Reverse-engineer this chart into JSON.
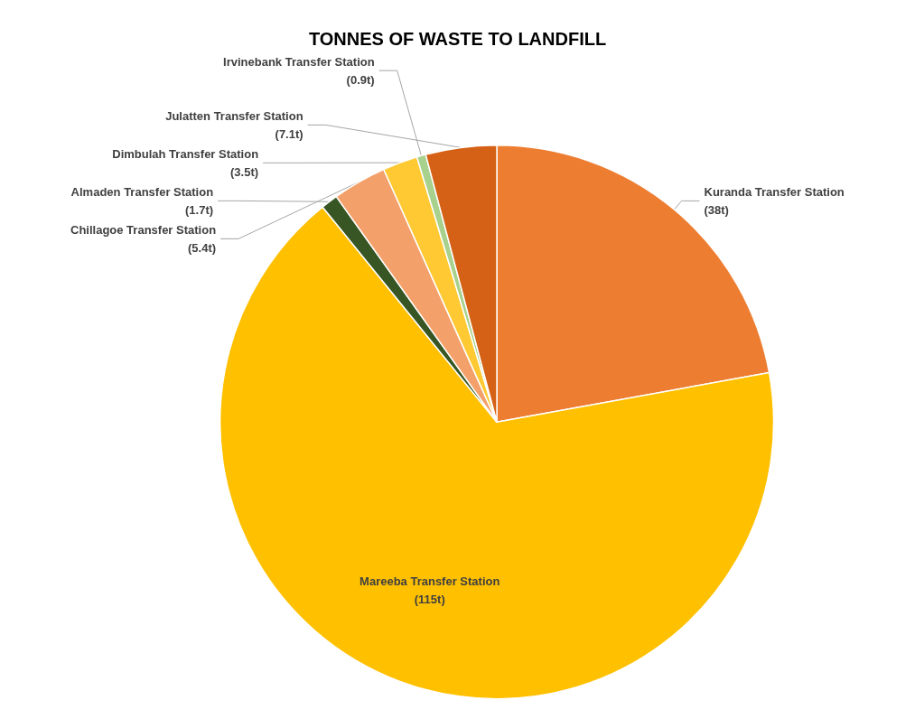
{
  "chart_data": {
    "type": "pie",
    "title": "TONNES OF WASTE TO LANDFILL",
    "categories": [
      "Kuranda Transfer Station",
      "Mareeba Transfer Station",
      "Almaden Transfer Station",
      "Chillagoe Transfer Station",
      "Dimbulah Transfer Station",
      "Irvinebank Transfer Station",
      "Julatten Transfer Station"
    ],
    "values": [
      38,
      115,
      1.7,
      5.4,
      3.5,
      0.9,
      7.1
    ],
    "value_labels": [
      "(38t)",
      "(115t)",
      "(1.7t)",
      "(5.4t)",
      "(3.5t)",
      "(0.9t)",
      "(7.1t)"
    ],
    "colors": [
      "#ed7d31",
      "#ffc000",
      "#375623",
      "#f4a06a",
      "#ffc933",
      "#a9d18e",
      "#d46115"
    ],
    "legend": false
  }
}
